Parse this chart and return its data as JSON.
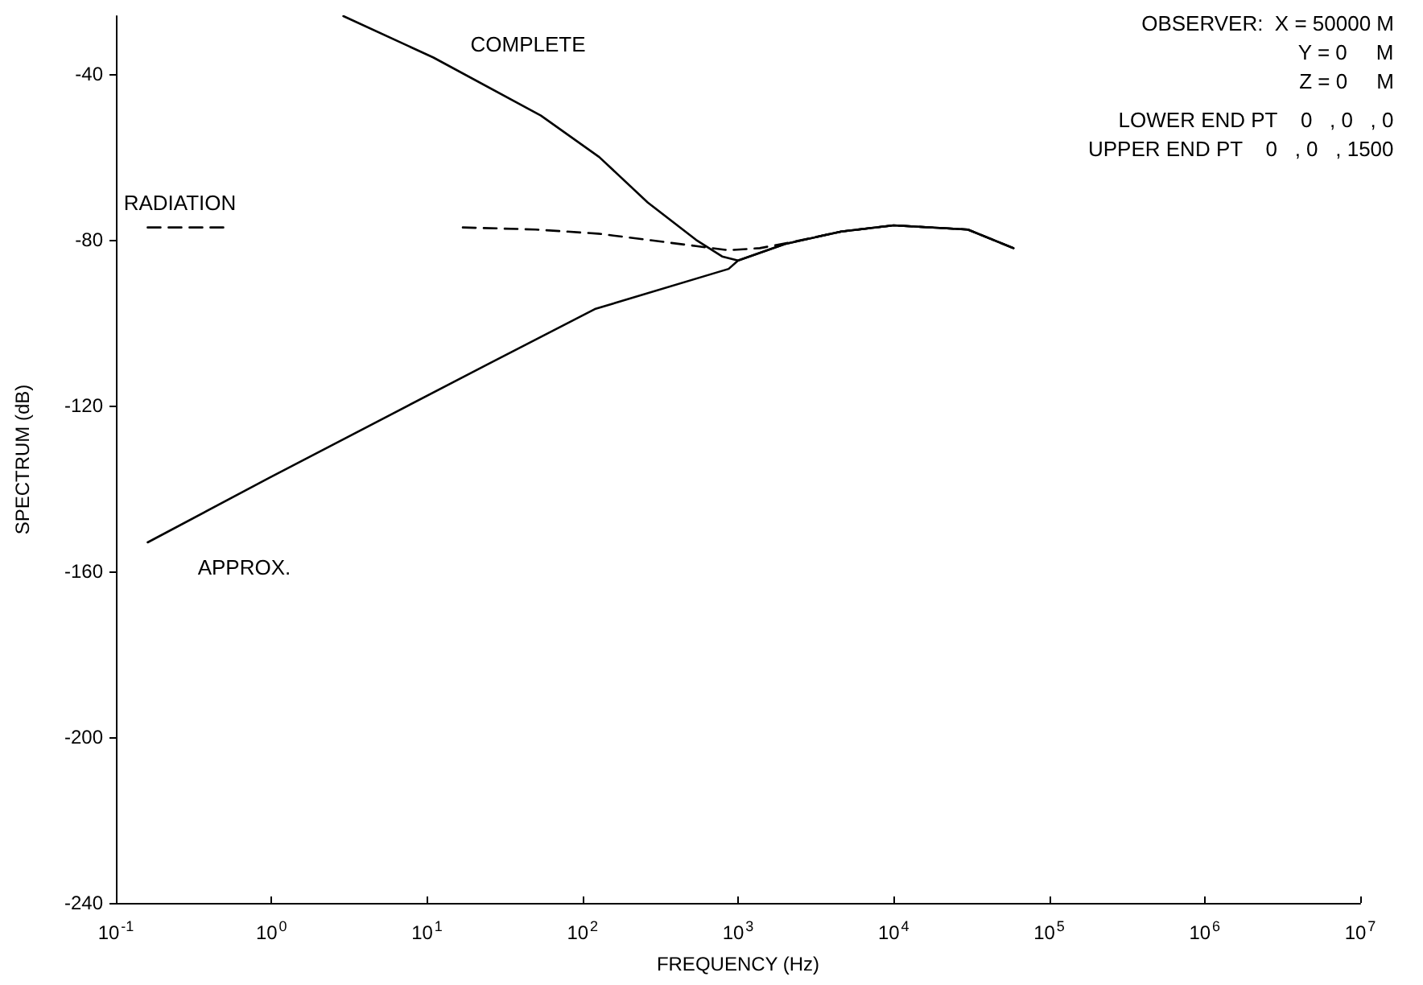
{
  "chart_data": {
    "type": "line",
    "xlabel": "FREQUENCY (Hz)",
    "ylabel": "SPECTRUM (dB)",
    "log": "x",
    "grid": false,
    "legend": false,
    "marker": "none",
    "xlim": [
      0.1,
      10000000
    ],
    "ylim": [
      -240,
      -26
    ],
    "xticks": [
      {
        "value": 0.1,
        "label": "10$^{-1}$"
      },
      {
        "value": 1,
        "label": "10$^{0}$"
      },
      {
        "value": 10,
        "label": "10$^{1}$"
      },
      {
        "value": 100,
        "label": "10$^{2}$"
      },
      {
        "value": 1000,
        "label": "10$^{3}$"
      },
      {
        "value": 10000,
        "label": "10$^{4}$"
      },
      {
        "value": 100000,
        "label": "10$^{5}$"
      },
      {
        "value": 1000000,
        "label": "10$^{6}$"
      },
      {
        "value": 10000000,
        "label": "10$^{7}$"
      }
    ],
    "yticks": [
      -240,
      -200,
      -160,
      -120,
      -80,
      -40
    ],
    "series": [
      {
        "name": "COMPLETE",
        "color": "#000000",
        "line_style": "solid",
        "x": [
          2.9,
          11,
          54,
          128,
          263,
          537,
          790,
          1000,
          2000,
          4600,
          10000,
          30000,
          59000
        ],
        "values": [
          -26,
          -36,
          -50,
          -60,
          -71,
          -80,
          -84,
          -85,
          -81,
          -78,
          -76.5,
          -77.5,
          -82
        ]
      },
      {
        "name": "RADIATION",
        "color": "#000000",
        "line_style": "dashed",
        "x": [
          0.16,
          0.55,
          3,
          17,
          50,
          126,
          263,
          537,
          870,
          1380,
          2240,
          4600,
          10000,
          30000,
          59000
        ],
        "values": [
          -77,
          -77,
          null,
          -77,
          -77.5,
          -78.5,
          -80,
          -81.5,
          -82.5,
          -82,
          -80.5,
          -78,
          -76.5,
          -77.5,
          -82
        ]
      },
      {
        "name": "APPROX.",
        "color": "#000000",
        "line_style": "solid",
        "x": [
          0.16,
          0.96,
          24.6,
          120,
          870,
          1000,
          2000,
          4600,
          10000,
          30000,
          59000
        ],
        "values": [
          -153,
          -137.5,
          -110,
          -96.7,
          -87,
          -85,
          -81,
          -78,
          -76.5,
          -77.5,
          -82
        ]
      }
    ],
    "annotations": [
      "OBSERVER:  X = 50000 M",
      "Y = 0     M",
      "Z = 0     M",
      "LOWER END PT    0   , 0   , 0",
      "UPPER END PT    0   , 0   , 1500"
    ]
  }
}
